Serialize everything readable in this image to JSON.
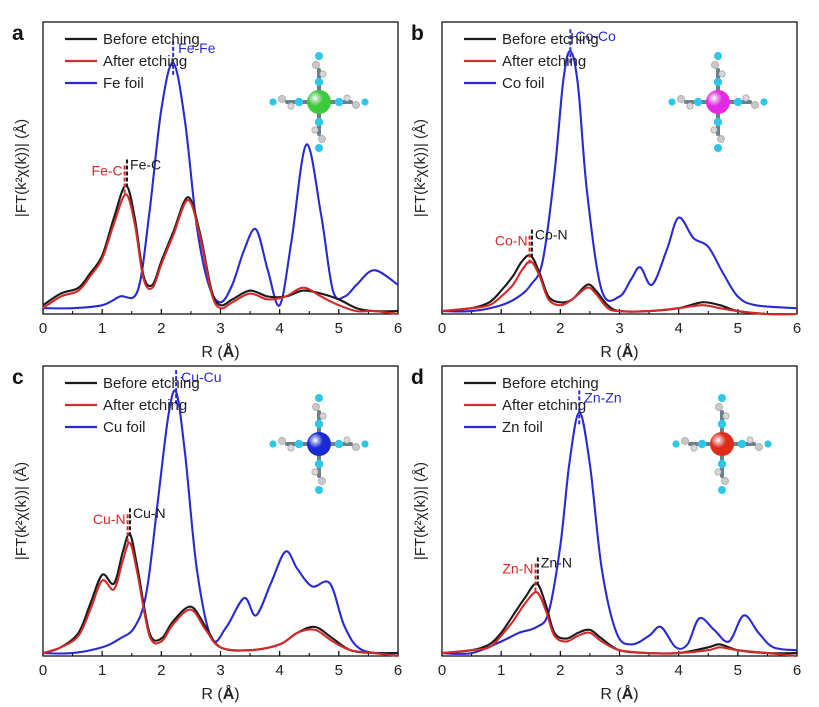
{
  "figure": {
    "x_axis_label_prefix": "R (",
    "x_axis_label_unit": "Å",
    "x_axis_label_suffix": ")",
    "colors": {
      "before": "#1a1a1a",
      "after": "#d42a2a",
      "foil": "#2a2ad4",
      "axis": "#000000"
    }
  },
  "chart_data": [
    {
      "panel_label": "a",
      "type": "line",
      "xlabel": "R (Å)",
      "ylabel": "|FT(k²χ(k))| (Å)",
      "xlim": [
        0,
        6
      ],
      "ylim": [
        0,
        1
      ],
      "xticks": [
        "0",
        "1",
        "2",
        "3",
        "4",
        "5",
        "6"
      ],
      "legend": [
        "Before etching",
        "After etching",
        "Fe foil"
      ],
      "legend_position": "top-left",
      "metal_color": "#3cc93c",
      "annotations": [
        {
          "text": "Fe-Fe",
          "x": 2.2,
          "color": "#2a2ad4",
          "side": "right"
        },
        {
          "text": "Fe-C",
          "x": 1.38,
          "color": "#d42a2a",
          "side": "left"
        },
        {
          "text": "Fe-C",
          "x": 1.42,
          "color": "#1a1a1a",
          "side": "right"
        }
      ],
      "series": [
        {
          "name": "Before etching",
          "color": "#1a1a1a",
          "x": [
            0,
            0.3,
            0.6,
            0.8,
            1.0,
            1.2,
            1.4,
            1.55,
            1.7,
            1.85,
            2.0,
            2.2,
            2.45,
            2.65,
            2.85,
            3.0,
            3.2,
            3.5,
            3.8,
            4.1,
            4.4,
            4.7,
            5.0,
            5.3,
            5.6,
            6.0
          ],
          "y": [
            0.03,
            0.07,
            0.09,
            0.14,
            0.2,
            0.33,
            0.44,
            0.33,
            0.13,
            0.1,
            0.18,
            0.28,
            0.4,
            0.28,
            0.08,
            0.03,
            0.05,
            0.08,
            0.06,
            0.06,
            0.08,
            0.07,
            0.05,
            0.02,
            0.01,
            0.01
          ]
        },
        {
          "name": "After etching",
          "color": "#d42a2a",
          "x": [
            0,
            0.3,
            0.6,
            0.8,
            1.0,
            1.2,
            1.4,
            1.55,
            1.7,
            1.85,
            2.0,
            2.2,
            2.45,
            2.65,
            2.85,
            3.0,
            3.2,
            3.5,
            3.8,
            4.1,
            4.4,
            4.7,
            5.0,
            5.3,
            5.6,
            6.0
          ],
          "y": [
            0.02,
            0.06,
            0.08,
            0.13,
            0.19,
            0.31,
            0.41,
            0.31,
            0.12,
            0.09,
            0.17,
            0.27,
            0.39,
            0.27,
            0.07,
            0.02,
            0.04,
            0.07,
            0.05,
            0.06,
            0.09,
            0.06,
            0.03,
            0.01,
            0.01,
            0.0
          ]
        },
        {
          "name": "Fe foil",
          "color": "#2a2ad4",
          "x": [
            0,
            0.5,
            1.0,
            1.3,
            1.6,
            1.8,
            2.0,
            2.2,
            2.4,
            2.6,
            2.8,
            3.0,
            3.2,
            3.4,
            3.6,
            3.8,
            4.0,
            4.2,
            4.45,
            4.7,
            4.9,
            5.1,
            5.3,
            5.6,
            6.0
          ],
          "y": [
            0.02,
            0.02,
            0.03,
            0.06,
            0.08,
            0.35,
            0.7,
            0.86,
            0.66,
            0.3,
            0.1,
            0.04,
            0.1,
            0.22,
            0.29,
            0.15,
            0.03,
            0.25,
            0.58,
            0.34,
            0.08,
            0.06,
            0.1,
            0.15,
            0.1
          ]
        }
      ]
    },
    {
      "panel_label": "b",
      "type": "line",
      "xlabel": "R (Å)",
      "ylabel": "|FT(k²χ(k))| (Å)",
      "xlim": [
        0,
        6
      ],
      "ylim": [
        0,
        1
      ],
      "xticks": [
        "0",
        "1",
        "2",
        "3",
        "4",
        "5",
        "6"
      ],
      "legend": [
        "Before etching",
        "After etching",
        "Co foil"
      ],
      "legend_position": "top-left",
      "metal_color": "#e32ae3",
      "annotations": [
        {
          "text": "Co-Co",
          "x": 2.17,
          "color": "#2a2ad4",
          "side": "right"
        },
        {
          "text": "Co-N",
          "x": 1.48,
          "color": "#d42a2a",
          "side": "left"
        },
        {
          "text": "Co-N",
          "x": 1.52,
          "color": "#1a1a1a",
          "side": "right"
        }
      ],
      "series": [
        {
          "name": "Before etching",
          "color": "#1a1a1a",
          "x": [
            0,
            0.5,
            0.8,
            1.0,
            1.2,
            1.35,
            1.5,
            1.65,
            1.8,
            2.0,
            2.2,
            2.45,
            2.6,
            2.8,
            3.0,
            3.5,
            4.0,
            4.4,
            4.7,
            5.0,
            5.5,
            6.0
          ],
          "y": [
            0.01,
            0.02,
            0.04,
            0.08,
            0.13,
            0.18,
            0.2,
            0.14,
            0.06,
            0.04,
            0.05,
            0.1,
            0.08,
            0.03,
            0.01,
            0.01,
            0.02,
            0.04,
            0.03,
            0.01,
            0.0,
            0.0
          ]
        },
        {
          "name": "After etching",
          "color": "#d42a2a",
          "x": [
            0,
            0.5,
            0.8,
            1.0,
            1.2,
            1.35,
            1.5,
            1.65,
            1.8,
            2.0,
            2.2,
            2.45,
            2.6,
            2.8,
            3.0,
            3.5,
            4.0,
            4.4,
            4.7,
            5.0,
            5.5,
            6.0
          ],
          "y": [
            0.01,
            0.02,
            0.03,
            0.06,
            0.1,
            0.15,
            0.18,
            0.13,
            0.05,
            0.03,
            0.05,
            0.09,
            0.07,
            0.02,
            0.01,
            0.01,
            0.02,
            0.03,
            0.02,
            0.01,
            0.0,
            0.0
          ]
        },
        {
          "name": "Co foil",
          "color": "#2a2ad4",
          "x": [
            0,
            0.5,
            1.0,
            1.3,
            1.5,
            1.7,
            1.9,
            2.05,
            2.17,
            2.3,
            2.45,
            2.7,
            3.0,
            3.2,
            3.35,
            3.55,
            3.8,
            4.0,
            4.25,
            4.5,
            4.75,
            5.0,
            5.3,
            6.0
          ],
          "y": [
            0.01,
            0.01,
            0.03,
            0.06,
            0.1,
            0.18,
            0.48,
            0.8,
            0.9,
            0.78,
            0.42,
            0.08,
            0.06,
            0.12,
            0.16,
            0.1,
            0.22,
            0.33,
            0.26,
            0.23,
            0.14,
            0.06,
            0.03,
            0.02
          ]
        }
      ]
    },
    {
      "panel_label": "c",
      "type": "line",
      "xlabel": "R (Å)",
      "ylabel": "|FT(k²χ(k))| (Å)",
      "xlim": [
        0,
        6
      ],
      "ylim": [
        0,
        1
      ],
      "xticks": [
        "0",
        "1",
        "2",
        "3",
        "4",
        "5",
        "6"
      ],
      "legend": [
        "Before etching",
        "After etching",
        "Cu foil"
      ],
      "legend_position": "top-left",
      "metal_color": "#1a2ad4",
      "annotations": [
        {
          "text": "Cu-Cu",
          "x": 2.25,
          "color": "#2a2ad4",
          "side": "right"
        },
        {
          "text": "Cu-N",
          "x": 1.43,
          "color": "#d42a2a",
          "side": "left"
        },
        {
          "text": "Cu-N",
          "x": 1.47,
          "color": "#1a1a1a",
          "side": "right"
        }
      ],
      "series": [
        {
          "name": "Before etching",
          "color": "#1a1a1a",
          "x": [
            0,
            0.3,
            0.6,
            0.8,
            1.0,
            1.2,
            1.35,
            1.47,
            1.6,
            1.8,
            2.0,
            2.2,
            2.5,
            2.75,
            3.0,
            3.5,
            4.0,
            4.3,
            4.6,
            4.9,
            5.2,
            5.6,
            6.0
          ],
          "y": [
            0.01,
            0.03,
            0.08,
            0.18,
            0.28,
            0.25,
            0.36,
            0.42,
            0.3,
            0.08,
            0.06,
            0.12,
            0.17,
            0.1,
            0.03,
            0.02,
            0.04,
            0.08,
            0.1,
            0.06,
            0.02,
            0.01,
            0.01
          ]
        },
        {
          "name": "After etching",
          "color": "#d42a2a",
          "x": [
            0,
            0.3,
            0.6,
            0.8,
            1.0,
            1.2,
            1.35,
            1.47,
            1.6,
            1.8,
            2.0,
            2.2,
            2.5,
            2.75,
            3.0,
            3.5,
            4.0,
            4.3,
            4.6,
            4.9,
            5.2,
            5.6,
            6.0
          ],
          "y": [
            0.01,
            0.03,
            0.07,
            0.16,
            0.26,
            0.23,
            0.33,
            0.39,
            0.28,
            0.07,
            0.05,
            0.11,
            0.16,
            0.09,
            0.03,
            0.02,
            0.04,
            0.08,
            0.09,
            0.05,
            0.02,
            0.01,
            0.0
          ]
        },
        {
          "name": "Cu foil",
          "color": "#2a2ad4",
          "x": [
            0,
            0.5,
            1.0,
            1.3,
            1.55,
            1.75,
            1.95,
            2.12,
            2.25,
            2.4,
            2.6,
            2.85,
            3.1,
            3.4,
            3.6,
            3.85,
            4.1,
            4.3,
            4.55,
            4.85,
            5.1,
            5.4,
            6.0
          ],
          "y": [
            0.01,
            0.01,
            0.03,
            0.06,
            0.1,
            0.22,
            0.55,
            0.83,
            0.91,
            0.7,
            0.3,
            0.06,
            0.1,
            0.2,
            0.14,
            0.25,
            0.36,
            0.3,
            0.24,
            0.25,
            0.1,
            0.02,
            0.01
          ]
        }
      ]
    },
    {
      "panel_label": "d",
      "type": "line",
      "xlabel": "R (Å)",
      "ylabel": "|FT(k²χ(k))| (Å)",
      "xlim": [
        0,
        6
      ],
      "ylim": [
        0,
        1
      ],
      "xticks": [
        "0",
        "1",
        "2",
        "3",
        "4",
        "5",
        "6"
      ],
      "legend": [
        "Before etching",
        "After etching",
        "Zn foil"
      ],
      "legend_position": "top-left",
      "metal_color": "#e02a1a",
      "annotations": [
        {
          "text": "Zn-Zn",
          "x": 2.32,
          "color": "#2a2ad4",
          "side": "right"
        },
        {
          "text": "Zn-N",
          "x": 1.58,
          "color": "#d42a2a",
          "side": "left"
        },
        {
          "text": "Zn-N",
          "x": 1.62,
          "color": "#1a1a1a",
          "side": "right"
        }
      ],
      "series": [
        {
          "name": "Before etching",
          "color": "#1a1a1a",
          "x": [
            0,
            0.5,
            0.8,
            1.0,
            1.2,
            1.4,
            1.6,
            1.75,
            1.9,
            2.1,
            2.3,
            2.5,
            2.7,
            3.0,
            3.5,
            4.0,
            4.5,
            4.7,
            5.0,
            5.5,
            6.0
          ],
          "y": [
            0.01,
            0.02,
            0.04,
            0.08,
            0.14,
            0.2,
            0.25,
            0.18,
            0.08,
            0.06,
            0.08,
            0.09,
            0.06,
            0.02,
            0.01,
            0.01,
            0.03,
            0.04,
            0.02,
            0.01,
            0.01
          ]
        },
        {
          "name": "After etching",
          "color": "#d42a2a",
          "x": [
            0,
            0.5,
            0.8,
            1.0,
            1.2,
            1.4,
            1.6,
            1.75,
            1.9,
            2.1,
            2.3,
            2.5,
            2.7,
            3.0,
            3.5,
            4.0,
            4.5,
            4.7,
            5.0,
            5.5,
            6.0
          ],
          "y": [
            0.01,
            0.02,
            0.03,
            0.07,
            0.12,
            0.18,
            0.22,
            0.16,
            0.07,
            0.05,
            0.07,
            0.08,
            0.05,
            0.02,
            0.01,
            0.01,
            0.02,
            0.03,
            0.02,
            0.01,
            0.0
          ]
        },
        {
          "name": "Zn foil",
          "color": "#2a2ad4",
          "x": [
            0,
            0.5,
            1.0,
            1.3,
            1.6,
            1.8,
            2.0,
            2.15,
            2.32,
            2.5,
            2.7,
            2.95,
            3.2,
            3.5,
            3.7,
            3.95,
            4.15,
            4.35,
            4.6,
            4.85,
            5.1,
            5.35,
            5.6,
            6.0
          ],
          "y": [
            0.01,
            0.01,
            0.05,
            0.08,
            0.1,
            0.15,
            0.38,
            0.66,
            0.84,
            0.66,
            0.3,
            0.08,
            0.04,
            0.07,
            0.1,
            0.03,
            0.04,
            0.13,
            0.09,
            0.05,
            0.14,
            0.08,
            0.03,
            0.02
          ]
        }
      ]
    }
  ]
}
